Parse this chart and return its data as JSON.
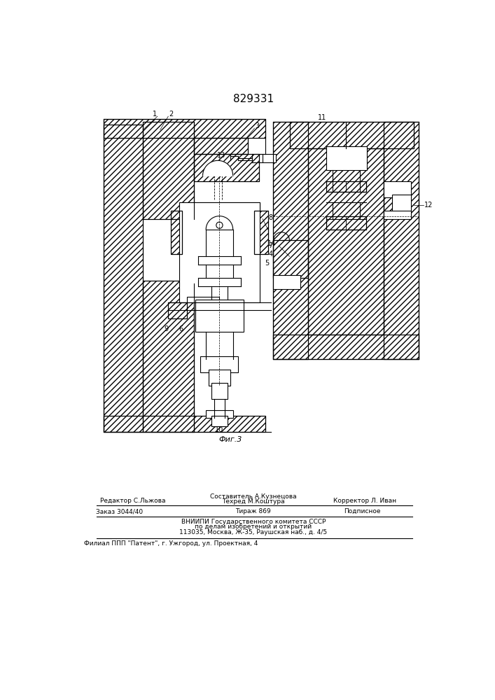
{
  "title": "829331",
  "fig_label": "Фиг.3",
  "background_color": "#ffffff",
  "footer": {
    "line1_left": "Редактор С.Льжова",
    "line1_center_top": "Составитель А.Кузнецова",
    "line1_center_bot": "Техред М.Коштура",
    "line1_right": "Корректор Л. Иван",
    "line2_left": "Заказ 3044/40",
    "line2_center": "Тираж 869",
    "line2_right": "Подписное",
    "line3": "ВНИИПИ Государственного комитета СССР",
    "line4": "по делам изобретений и открытий",
    "line5": "113035, Москва, Ж-35, Раушская наб., д. 4/5",
    "line6": "Филиал ППП \"Патент\", г. Ужгород, ул. Проектная, 4"
  }
}
